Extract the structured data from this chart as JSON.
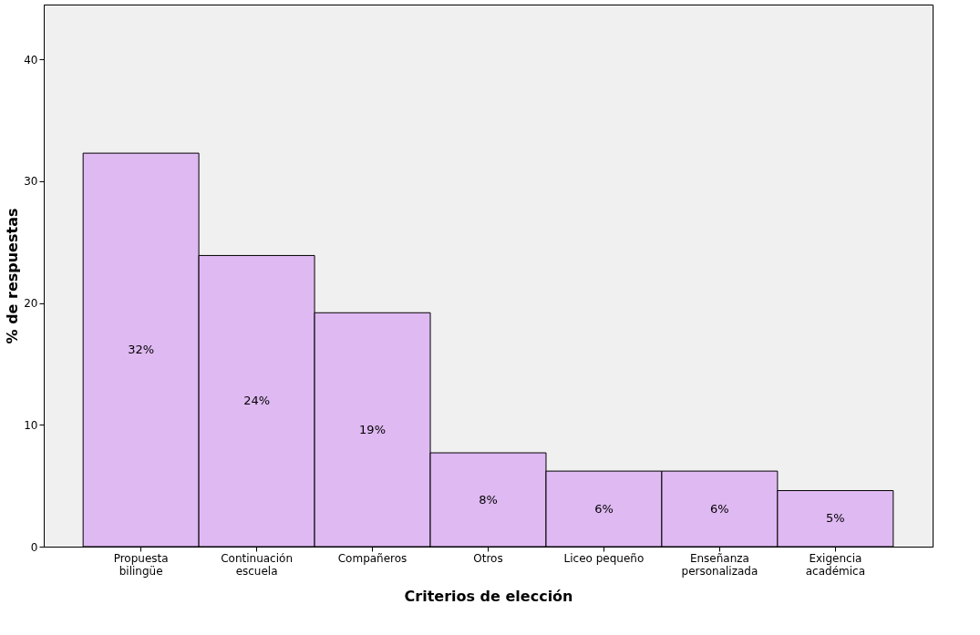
{
  "chart_data": {
    "type": "bar",
    "xlabel": "Criterios de elección",
    "ylabel": "% de respuestas",
    "categories": [
      "Propuesta\nbilingüe",
      "Continuación\nescuela",
      "Compañeros",
      "Otros",
      "Liceo pequeño",
      "Enseñanza\npersonalizada",
      "Exigencia\nacadémica"
    ],
    "values": [
      32.3,
      23.9,
      19.2,
      7.7,
      6.2,
      6.2,
      4.6
    ],
    "value_labels": [
      "32%",
      "24%",
      "19%",
      "8%",
      "6%",
      "6%",
      "5%"
    ],
    "color": "#dfb9f2",
    "ylim": [
      0,
      44.5
    ],
    "yticks": [
      0,
      10,
      20,
      30,
      40
    ],
    "grid": false
  }
}
